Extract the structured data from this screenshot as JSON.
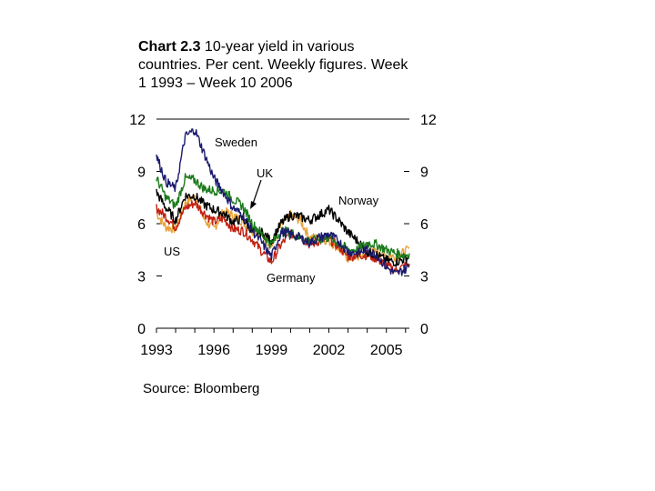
{
  "title": {
    "label": "Chart 2.3",
    "text": "10-year yield in various countries. Per cent. Weekly figures. Week 1 1993 – Week 10 2006"
  },
  "source": "Source: Bloomberg",
  "chart_data": {
    "type": "line",
    "x_ticks": [
      "1993",
      "1996",
      "1999",
      "2002",
      "2005"
    ],
    "y_ticks_left": [
      "0",
      "3",
      "6",
      "9",
      "12"
    ],
    "y_ticks_right": [
      "0",
      "3",
      "6",
      "9",
      "12"
    ],
    "ylim": [
      0,
      12
    ],
    "xlim": [
      1993.0,
      2006.2
    ],
    "grid": false,
    "annotations": [
      "Sweden",
      "UK",
      "Norway",
      "US",
      "Germany"
    ],
    "series": [
      {
        "name": "US",
        "color": "#e8a23c",
        "x": [
          1993,
          1993.5,
          1994,
          1994.5,
          1995,
          1995.5,
          1996,
          1996.5,
          1997,
          1997.5,
          1998,
          1998.5,
          1999,
          1999.5,
          2000,
          2000.5,
          2001,
          2001.5,
          2002,
          2002.5,
          2003,
          2003.5,
          2004,
          2004.5,
          2005,
          2005.5,
          2006,
          2006.2
        ],
        "y": [
          6.6,
          5.8,
          5.7,
          7.2,
          7.6,
          6.2,
          5.7,
          6.7,
          6.5,
          6.1,
          5.6,
          5.4,
          4.7,
          5.9,
          6.5,
          6.2,
          5.2,
          5.2,
          5.0,
          4.6,
          4.0,
          4.1,
          4.3,
          4.4,
          4.2,
          4.1,
          4.4,
          4.6
        ]
      },
      {
        "name": "Germany",
        "color": "#c02010",
        "x": [
          1993,
          1993.5,
          1994,
          1994.5,
          1995,
          1995.5,
          1996,
          1996.5,
          1997,
          1997.5,
          1998,
          1998.5,
          1999,
          1999.5,
          2000,
          2000.5,
          2001,
          2001.5,
          2002,
          2002.5,
          2003,
          2003.5,
          2004,
          2004.5,
          2005,
          2005.5,
          2006,
          2006.2
        ],
        "y": [
          6.9,
          6.4,
          5.8,
          6.9,
          7.2,
          6.6,
          6.1,
          6.3,
          5.7,
          5.6,
          5.1,
          4.4,
          3.8,
          4.8,
          5.4,
          5.3,
          4.8,
          5.0,
          5.1,
          4.7,
          4.1,
          4.2,
          4.2,
          4.0,
          3.6,
          3.3,
          3.6,
          3.7
        ]
      },
      {
        "name": "Norway",
        "color": "#000000",
        "x": [
          1993,
          1993.5,
          1994,
          1994.5,
          1995,
          1995.5,
          1996,
          1996.5,
          1997,
          1997.5,
          1998,
          1998.5,
          1999,
          1999.5,
          2000,
          2000.5,
          2001,
          2001.5,
          2002,
          2002.5,
          2003,
          2003.5,
          2004,
          2004.5,
          2005,
          2005.5,
          2006,
          2006.2
        ],
        "y": [
          7.8,
          6.9,
          6.2,
          7.6,
          7.6,
          7.1,
          6.8,
          6.6,
          6.1,
          6.3,
          5.6,
          5.5,
          5.0,
          6.0,
          6.5,
          6.4,
          6.2,
          6.5,
          6.8,
          6.2,
          5.5,
          5.0,
          4.4,
          4.2,
          3.9,
          3.8,
          4.0,
          4.1
        ]
      },
      {
        "name": "UK",
        "color": "#1a7a1a",
        "x": [
          1993,
          1993.5,
          1994,
          1994.5,
          1995,
          1995.5,
          1996,
          1996.5,
          1997,
          1997.5,
          1998,
          1998.5,
          1999,
          1999.5,
          2000,
          2000.5,
          2001,
          2001.5,
          2002,
          2002.5,
          2003,
          2003.5,
          2004,
          2004.5,
          2005,
          2005.5,
          2006,
          2006.2
        ],
        "y": [
          8.6,
          7.5,
          7.0,
          8.6,
          8.5,
          8.0,
          7.9,
          7.9,
          7.4,
          7.0,
          6.0,
          5.4,
          4.8,
          5.6,
          5.5,
          5.2,
          5.0,
          5.1,
          5.2,
          4.9,
          4.5,
          4.5,
          4.9,
          4.8,
          4.5,
          4.3,
          4.2,
          4.3
        ]
      },
      {
        "name": "Sweden",
        "color": "#1a1a6e",
        "x": [
          1993,
          1993.5,
          1994,
          1994.5,
          1995,
          1995.5,
          1996,
          1996.5,
          1997,
          1997.5,
          1998,
          1998.5,
          1999,
          1999.5,
          2000,
          2000.5,
          2001,
          2001.5,
          2002,
          2002.5,
          2003,
          2003.5,
          2004,
          2004.5,
          2005,
          2005.5,
          2006,
          2006.2
        ],
        "y": [
          9.9,
          8.4,
          8.0,
          11.0,
          11.4,
          10.0,
          8.6,
          7.8,
          6.9,
          6.5,
          5.6,
          4.9,
          4.1,
          5.5,
          5.4,
          5.2,
          4.9,
          5.2,
          5.4,
          5.0,
          4.4,
          4.3,
          4.5,
          4.2,
          3.5,
          3.1,
          3.4,
          3.6
        ]
      }
    ]
  }
}
